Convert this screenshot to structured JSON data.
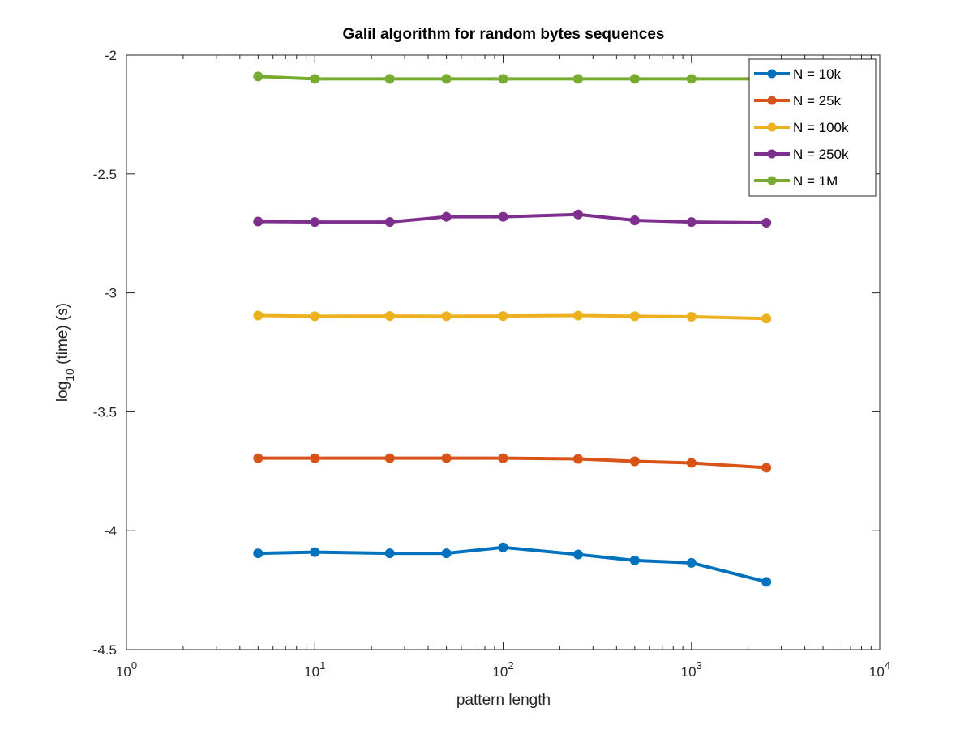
{
  "chart_data": {
    "type": "line",
    "title": "Galil algorithm for random bytes sequences",
    "xlabel": "pattern length",
    "ylabel": {
      "base": "log",
      "sub": "10",
      "rest": " (time) (s)"
    },
    "x_scale": "log",
    "xlim": [
      1,
      10000
    ],
    "ylim": [
      -4.5,
      -2
    ],
    "x_ticks": [
      {
        "value": 1,
        "base": "10",
        "exp": "0"
      },
      {
        "value": 10,
        "base": "10",
        "exp": "1"
      },
      {
        "value": 100,
        "base": "10",
        "exp": "2"
      },
      {
        "value": 1000,
        "base": "10",
        "exp": "3"
      },
      {
        "value": 10000,
        "base": "10",
        "exp": "4"
      }
    ],
    "y_ticks": [
      {
        "value": -2,
        "label": "-2"
      },
      {
        "value": -2.5,
        "label": "-2.5"
      },
      {
        "value": -3,
        "label": "-3"
      },
      {
        "value": -3.5,
        "label": "-3.5"
      },
      {
        "value": -4,
        "label": "-4"
      },
      {
        "value": -4.5,
        "label": "-4.5"
      }
    ],
    "grid": false,
    "legend_position": "top-right",
    "x": [
      5,
      10,
      25,
      50,
      100,
      250,
      500,
      1000,
      2500
    ],
    "series": [
      {
        "name": "N = 10k",
        "color": "#0072bd",
        "values": [
          -4.095,
          -4.09,
          -4.095,
          -4.095,
          -4.07,
          -4.1,
          -4.125,
          -4.135,
          -4.215
        ]
      },
      {
        "name": "N = 25k",
        "color": "#d95319",
        "values": [
          -3.695,
          -3.695,
          -3.695,
          -3.695,
          -3.695,
          -3.698,
          -3.708,
          -3.715,
          -3.735
        ]
      },
      {
        "name": "N = 100k",
        "color": "#edb120",
        "values": [
          -3.095,
          -3.098,
          -3.097,
          -3.098,
          -3.097,
          -3.095,
          -3.098,
          -3.1,
          -3.108
        ]
      },
      {
        "name": "N = 250k",
        "color": "#7e2f8e",
        "values": [
          -2.7,
          -2.702,
          -2.702,
          -2.68,
          -2.68,
          -2.67,
          -2.695,
          -2.702,
          -2.705
        ]
      },
      {
        "name": "N = 1M",
        "color": "#77ac30",
        "values": [
          -2.09,
          -2.1,
          -2.1,
          -2.1,
          -2.1,
          -2.1,
          -2.1,
          -2.1,
          -2.1
        ]
      }
    ]
  }
}
